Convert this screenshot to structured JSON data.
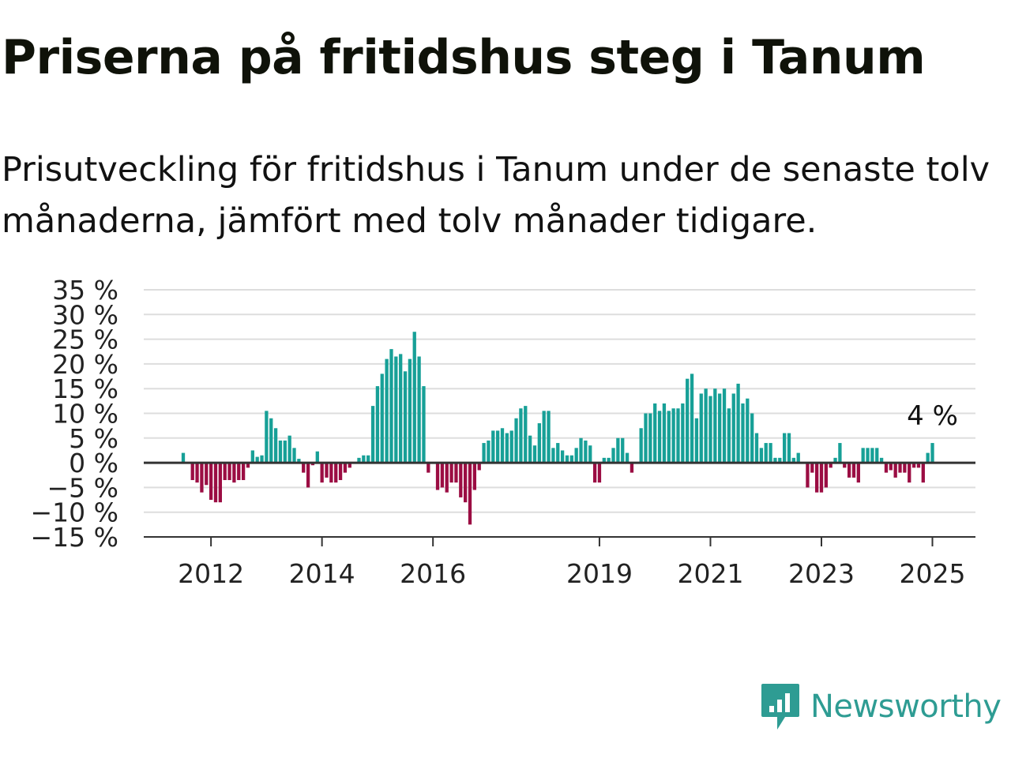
{
  "title": "Priserna på fritidshus steg i Tanum",
  "subtitle": "Prisutveckling för fritidshus i Tanum under de senaste tolv månaderna, jämfört med tolv månader tidigare.",
  "brand": {
    "name": "Newsworthy",
    "icon": "newsworthy-logo-icon"
  },
  "colors": {
    "positive": "#17a097",
    "negative": "#9b0d43",
    "grid": "#dddddd",
    "axis": "#333333",
    "brand": "#2e9c93"
  },
  "chart_data": {
    "type": "bar",
    "start": "2011-07",
    "frequency": "monthly",
    "ylim": [
      -15,
      35
    ],
    "yticks": [
      35,
      30,
      25,
      20,
      15,
      10,
      5,
      0,
      -5,
      -10,
      -15
    ],
    "ytick_labels": [
      "35 %",
      "30 %",
      "25 %",
      "20 %",
      "15 %",
      "10 %",
      "5 %",
      "0 %",
      "−5 %",
      "−10 %",
      "−15 %"
    ],
    "xtick_labels": [
      "2012",
      "2014",
      "2016",
      "2019",
      "2021",
      "2023",
      "2025"
    ],
    "grid": true,
    "annotation": {
      "text": "4 %",
      "target": "last"
    },
    "values": [
      2,
      0,
      -3.5,
      -4,
      -6,
      -4.5,
      -7.5,
      -8,
      -8,
      -3.5,
      -3.5,
      -4,
      -3.5,
      -3.5,
      -1,
      2.5,
      1.2,
      1.5,
      10.5,
      9,
      7,
      4.5,
      4.5,
      5.5,
      3,
      0.8,
      -2,
      -5,
      -0.5,
      2.3,
      -4,
      -3,
      -4,
      -4,
      -3.5,
      -2,
      -1,
      0,
      1,
      1.5,
      1.5,
      11.5,
      15.5,
      18,
      21,
      23,
      21.5,
      22,
      18.5,
      21,
      26.5,
      21.5,
      15.5,
      -2,
      0,
      -5.5,
      -5,
      -6,
      -4,
      -4,
      -7,
      -8,
      -12.5,
      -5.5,
      -1.5,
      4,
      4.5,
      6.5,
      6.5,
      7,
      6,
      6.5,
      9,
      11,
      11.5,
      5.5,
      3.5,
      8,
      10.5,
      10.5,
      3,
      4,
      2.5,
      1.5,
      1.5,
      3,
      5,
      4.5,
      3.5,
      -4,
      -4,
      1,
      1,
      3,
      5,
      5,
      2,
      -2,
      0,
      7,
      10,
      10,
      12,
      10.5,
      12,
      10.5,
      11,
      11,
      12,
      17,
      18,
      9,
      14,
      15,
      13.5,
      15,
      14,
      15,
      11,
      14,
      16,
      12,
      13,
      10,
      6,
      3,
      4,
      4,
      1,
      1,
      6,
      6,
      1,
      2,
      0,
      -5,
      -2,
      -6,
      -6,
      -5,
      -1,
      1,
      4,
      -1,
      -3,
      -3,
      -4,
      3,
      3,
      3,
      3,
      1,
      -2,
      -1.5,
      -3,
      -2,
      -2,
      -4,
      -1,
      -1,
      -4,
      2,
      4
    ]
  }
}
